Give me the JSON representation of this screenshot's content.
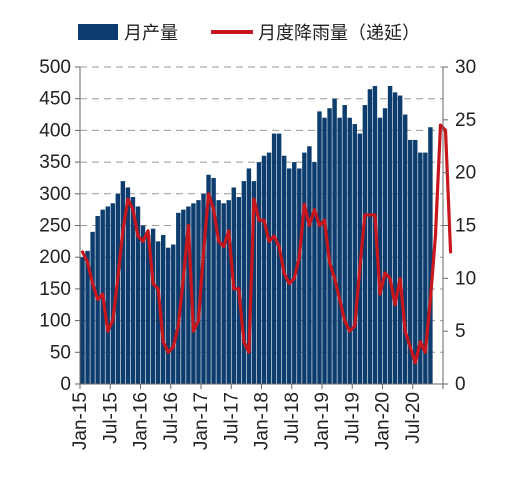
{
  "chart_data": {
    "type": "bar+line",
    "legend": [
      {
        "label": "月产量",
        "color": "#0d3d6e",
        "kind": "bar"
      },
      {
        "label": "月度降雨量（递延）",
        "color": "#c8161d",
        "kind": "line"
      }
    ],
    "legend_position": "top",
    "grid": "horizontal-dashed",
    "left_axis": {
      "min": 0,
      "max": 500,
      "ticks": [
        0,
        50,
        100,
        150,
        200,
        250,
        300,
        350,
        400,
        450,
        500
      ]
    },
    "right_axis": {
      "min": 0,
      "max": 30,
      "ticks": [
        0,
        5,
        10,
        15,
        20,
        25,
        30
      ]
    },
    "x_tick_labels": [
      "Jan-15",
      "Jul-15",
      "Jan-16",
      "Jul-16",
      "Jan-17",
      "Jul-17",
      "Jan-18",
      "Jul-18",
      "Jan-19",
      "Jul-19",
      "Jan-20",
      "Jul-20"
    ],
    "x_start": "2015-01",
    "x_end": "2020-12",
    "production": [
      {
        "x": "2015-01",
        "y": 200
      },
      {
        "x": "2015-02",
        "y": 210
      },
      {
        "x": "2015-03",
        "y": 240
      },
      {
        "x": "2015-04",
        "y": 265
      },
      {
        "x": "2015-05",
        "y": 275
      },
      {
        "x": "2015-06",
        "y": 280
      },
      {
        "x": "2015-07",
        "y": 285
      },
      {
        "x": "2015-08",
        "y": 300
      },
      {
        "x": "2015-09",
        "y": 320
      },
      {
        "x": "2015-10",
        "y": 310
      },
      {
        "x": "2015-11",
        "y": 295
      },
      {
        "x": "2015-12",
        "y": 280
      },
      {
        "x": "2016-01",
        "y": 250
      },
      {
        "x": "2016-02",
        "y": 235
      },
      {
        "x": "2016-03",
        "y": 245
      },
      {
        "x": "2016-04",
        "y": 225
      },
      {
        "x": "2016-05",
        "y": 235
      },
      {
        "x": "2016-06",
        "y": 215
      },
      {
        "x": "2016-07",
        "y": 220
      },
      {
        "x": "2016-08",
        "y": 270
      },
      {
        "x": "2016-09",
        "y": 275
      },
      {
        "x": "2016-10",
        "y": 280
      },
      {
        "x": "2016-11",
        "y": 285
      },
      {
        "x": "2016-12",
        "y": 290
      },
      {
        "x": "2017-01",
        "y": 300
      },
      {
        "x": "2017-02",
        "y": 330
      },
      {
        "x": "2017-03",
        "y": 325
      },
      {
        "x": "2017-04",
        "y": 290
      },
      {
        "x": "2017-05",
        "y": 285
      },
      {
        "x": "2017-06",
        "y": 290
      },
      {
        "x": "2017-07",
        "y": 310
      },
      {
        "x": "2017-08",
        "y": 295
      },
      {
        "x": "2017-09",
        "y": 320
      },
      {
        "x": "2017-10",
        "y": 340
      },
      {
        "x": "2017-11",
        "y": 320
      },
      {
        "x": "2017-12",
        "y": 350
      },
      {
        "x": "2018-01",
        "y": 360
      },
      {
        "x": "2018-02",
        "y": 365
      },
      {
        "x": "2018-03",
        "y": 395
      },
      {
        "x": "2018-04",
        "y": 395
      },
      {
        "x": "2018-05",
        "y": 360
      },
      {
        "x": "2018-06",
        "y": 340
      },
      {
        "x": "2018-07",
        "y": 350
      },
      {
        "x": "2018-08",
        "y": 340
      },
      {
        "x": "2018-09",
        "y": 365
      },
      {
        "x": "2018-10",
        "y": 375
      },
      {
        "x": "2018-11",
        "y": 350
      },
      {
        "x": "2018-12",
        "y": 430
      },
      {
        "x": "2019-01",
        "y": 420
      },
      {
        "x": "2019-02",
        "y": 435
      },
      {
        "x": "2019-03",
        "y": 450
      },
      {
        "x": "2019-04",
        "y": 420
      },
      {
        "x": "2019-05",
        "y": 440
      },
      {
        "x": "2019-06",
        "y": 420
      },
      {
        "x": "2019-07",
        "y": 410
      },
      {
        "x": "2019-08",
        "y": 395
      },
      {
        "x": "2019-09",
        "y": 440
      },
      {
        "x": "2019-10",
        "y": 465
      },
      {
        "x": "2019-11",
        "y": 470
      },
      {
        "x": "2019-12",
        "y": 420
      },
      {
        "x": "2020-01",
        "y": 435
      },
      {
        "x": "2020-02",
        "y": 470
      },
      {
        "x": "2020-03",
        "y": 460
      },
      {
        "x": "2020-04",
        "y": 455
      },
      {
        "x": "2020-05",
        "y": 425
      },
      {
        "x": "2020-06",
        "y": 385
      },
      {
        "x": "2020-07",
        "y": 385
      },
      {
        "x": "2020-08",
        "y": 365
      },
      {
        "x": "2020-09",
        "y": 365
      },
      {
        "x": "2020-10",
        "y": 405
      }
    ],
    "rainfall_lagged": [
      {
        "x": "2015-01",
        "y": 12.5
      },
      {
        "x": "2015-02",
        "y": 11.5
      },
      {
        "x": "2015-03",
        "y": 9.5
      },
      {
        "x": "2015-04",
        "y": 8.0
      },
      {
        "x": "2015-05",
        "y": 8.5
      },
      {
        "x": "2015-06",
        "y": 5.0
      },
      {
        "x": "2015-07",
        "y": 6.0
      },
      {
        "x": "2015-08",
        "y": 10.0
      },
      {
        "x": "2015-09",
        "y": 14.5
      },
      {
        "x": "2015-10",
        "y": 17.5
      },
      {
        "x": "2015-11",
        "y": 16.5
      },
      {
        "x": "2015-12",
        "y": 14.0
      },
      {
        "x": "2016-01",
        "y": 13.5
      },
      {
        "x": "2016-02",
        "y": 14.5
      },
      {
        "x": "2016-03",
        "y": 9.5
      },
      {
        "x": "2016-04",
        "y": 9.0
      },
      {
        "x": "2016-05",
        "y": 4.0
      },
      {
        "x": "2016-06",
        "y": 3.0
      },
      {
        "x": "2016-07",
        "y": 3.5
      },
      {
        "x": "2016-08",
        "y": 5.5
      },
      {
        "x": "2016-09",
        "y": 10.0
      },
      {
        "x": "2016-10",
        "y": 15.0
      },
      {
        "x": "2016-11",
        "y": 5.0
      },
      {
        "x": "2016-12",
        "y": 6.0
      },
      {
        "x": "2017-01",
        "y": 12.5
      },
      {
        "x": "2017-02",
        "y": 18.0
      },
      {
        "x": "2017-03",
        "y": 16.5
      },
      {
        "x": "2017-04",
        "y": 13.5
      },
      {
        "x": "2017-05",
        "y": 13.0
      },
      {
        "x": "2017-06",
        "y": 14.5
      },
      {
        "x": "2017-07",
        "y": 9.0
      },
      {
        "x": "2017-08",
        "y": 9.0
      },
      {
        "x": "2017-09",
        "y": 4.0
      },
      {
        "x": "2017-10",
        "y": 3.0
      },
      {
        "x": "2017-11",
        "y": 17.5
      },
      {
        "x": "2017-12",
        "y": 15.5
      },
      {
        "x": "2018-01",
        "y": 15.5
      },
      {
        "x": "2018-02",
        "y": 13.5
      },
      {
        "x": "2018-03",
        "y": 14.0
      },
      {
        "x": "2018-04",
        "y": 13.0
      },
      {
        "x": "2018-05",
        "y": 10.5
      },
      {
        "x": "2018-06",
        "y": 9.5
      },
      {
        "x": "2018-07",
        "y": 10.0
      },
      {
        "x": "2018-08",
        "y": 12.0
      },
      {
        "x": "2018-09",
        "y": 17.0
      },
      {
        "x": "2018-10",
        "y": 15.0
      },
      {
        "x": "2018-11",
        "y": 16.5
      },
      {
        "x": "2018-12",
        "y": 15.0
      },
      {
        "x": "2019-01",
        "y": 15.5
      },
      {
        "x": "2019-02",
        "y": 11.5
      },
      {
        "x": "2019-03",
        "y": 10.0
      },
      {
        "x": "2019-04",
        "y": 8.0
      },
      {
        "x": "2019-05",
        "y": 6.0
      },
      {
        "x": "2019-06",
        "y": 5.0
      },
      {
        "x": "2019-07",
        "y": 5.5
      },
      {
        "x": "2019-08",
        "y": 11.0
      },
      {
        "x": "2019-09",
        "y": 16.0
      },
      {
        "x": "2019-10",
        "y": 16.0
      },
      {
        "x": "2019-11",
        "y": 16.0
      },
      {
        "x": "2019-12",
        "y": 8.5
      },
      {
        "x": "2020-01",
        "y": 10.5
      },
      {
        "x": "2020-02",
        "y": 10.0
      },
      {
        "x": "2020-03",
        "y": 7.5
      },
      {
        "x": "2020-04",
        "y": 10.0
      },
      {
        "x": "2020-05",
        "y": 5.0
      },
      {
        "x": "2020-06",
        "y": 3.5
      },
      {
        "x": "2020-07",
        "y": 2.0
      },
      {
        "x": "2020-08",
        "y": 4.0
      },
      {
        "x": "2020-09",
        "y": 3.0
      },
      {
        "x": "2020-10",
        "y": 8.0
      },
      {
        "x": "2020-11",
        "y": 14.0
      },
      {
        "x": "2020-12",
        "y": 24.5
      },
      {
        "x": "2021-01",
        "y": 24.0
      },
      {
        "x": "2021-02",
        "y": 12.5
      }
    ]
  }
}
